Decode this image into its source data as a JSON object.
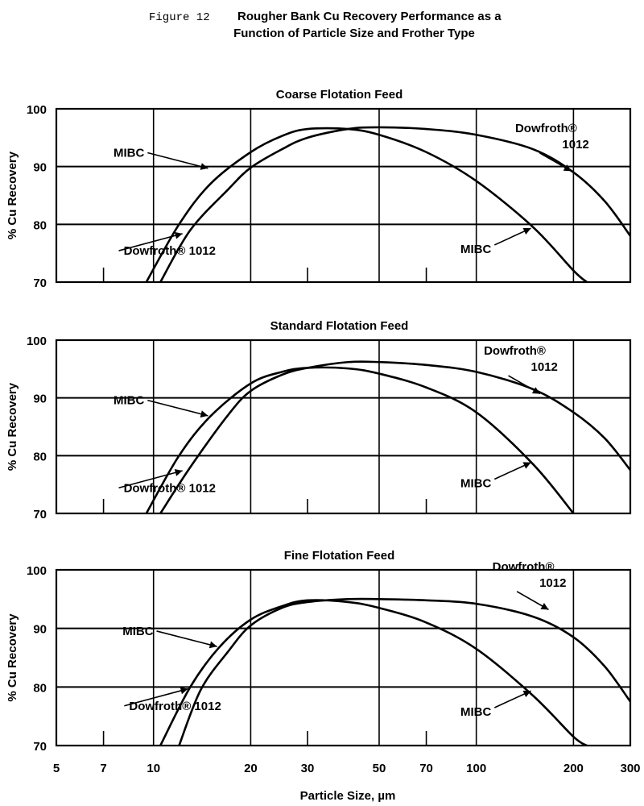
{
  "figure": {
    "label": "Figure 12",
    "title_line1": "Rougher Bank Cu Recovery Performance as a",
    "title_line2": "Function of Particle Size and Frother Type"
  },
  "x_axis": {
    "label": "Particle Size, µm",
    "scale": "log",
    "range": [
      5,
      300
    ],
    "ticks": [
      5,
      7,
      10,
      20,
      30,
      50,
      70,
      100,
      200,
      300
    ],
    "gridlines": [
      10,
      20,
      50,
      100,
      200
    ]
  },
  "chart_data": [
    {
      "type": "line",
      "title": "Coarse Flotation Feed",
      "ylabel": "% Cu Recovery",
      "ylim": [
        70,
        100
      ],
      "yticks": [
        70,
        80,
        90,
        100
      ],
      "grid": true,
      "series": [
        {
          "name": "MIBC",
          "x": [
            9.5,
            12,
            15,
            20,
            25,
            30,
            40,
            50,
            70,
            100,
            150,
            200,
            220
          ],
          "y": [
            70,
            80,
            87,
            92.5,
            95.3,
            96.5,
            96.5,
            95.5,
            92.5,
            87.5,
            79.5,
            72,
            70
          ]
        },
        {
          "name": "Dowfroth® 1012",
          "x": [
            10.5,
            13,
            17,
            20,
            25,
            30,
            40,
            50,
            70,
            100,
            150,
            200,
            250,
            300
          ],
          "y": [
            70,
            79,
            86,
            89.8,
            93,
            95,
            96.5,
            96.8,
            96.5,
            95.5,
            93,
            89,
            84,
            78
          ]
        }
      ],
      "annotations": [
        {
          "text": "MIBC",
          "target": "MIBC",
          "x": 15,
          "y": 89.6
        },
        {
          "text": "Dowfroth® 1012",
          "target": "Dowfroth® 1012",
          "x": 12.5,
          "y": 78.5
        },
        {
          "text": "MIBC",
          "target": "MIBC",
          "x": 150,
          "y": 79.5
        },
        {
          "text": "Dowfroth® 1012",
          "target": "Dowfroth® 1012",
          "x": 200,
          "y": 89
        }
      ]
    },
    {
      "type": "line",
      "title": "Standard Flotation Feed",
      "ylabel": "% Cu Recovery",
      "ylim": [
        70,
        100
      ],
      "yticks": [
        70,
        80,
        90,
        100
      ],
      "grid": true,
      "series": [
        {
          "name": "MIBC",
          "x": [
            9.5,
            12,
            15,
            20,
            25,
            30,
            40,
            50,
            70,
            100,
            150,
            200
          ],
          "y": [
            70,
            80,
            86.8,
            92.5,
            94.5,
            95.2,
            95.1,
            94.2,
            91.8,
            87.5,
            78.5,
            70
          ]
        },
        {
          "name": "Dowfroth® 1012",
          "x": [
            10.5,
            13,
            17,
            20,
            25,
            30,
            40,
            50,
            70,
            100,
            150,
            200,
            250,
            300
          ],
          "y": [
            70,
            78,
            87,
            91.2,
            94,
            95.2,
            96.2,
            96.2,
            95.7,
            94.5,
            91.5,
            87.5,
            83,
            77.5
          ]
        }
      ],
      "annotations": [
        {
          "text": "MIBC",
          "target": "MIBC",
          "x": 15,
          "y": 86.8
        },
        {
          "text": "Dowfroth® 1012",
          "target": "Dowfroth® 1012",
          "x": 12.5,
          "y": 77.5
        },
        {
          "text": "MIBC",
          "target": "MIBC",
          "x": 150,
          "y": 79
        },
        {
          "text": "Dowfroth® 1012",
          "target": "Dowfroth® 1012",
          "x": 160,
          "y": 90.5
        }
      ]
    },
    {
      "type": "line",
      "title": "Fine Flotation Feed",
      "ylabel": "% Cu Recovery",
      "ylim": [
        70,
        100
      ],
      "yticks": [
        70,
        80,
        90,
        100
      ],
      "grid": true,
      "series": [
        {
          "name": "MIBC",
          "x": [
            10.5,
            13,
            16,
            20,
            25,
            30,
            40,
            50,
            70,
            100,
            150,
            200,
            220
          ],
          "y": [
            70,
            80,
            86.8,
            91.5,
            93.8,
            94.8,
            94.5,
            93.5,
            91,
            86.5,
            78.5,
            71.5,
            70
          ]
        },
        {
          "name": "Dowfroth® 1012",
          "x": [
            12,
            14,
            17,
            20,
            25,
            30,
            40,
            50,
            70,
            100,
            150,
            200,
            250,
            300
          ],
          "y": [
            70,
            79.5,
            86,
            90.5,
            93.5,
            94.5,
            95,
            95,
            94.8,
            94.2,
            92,
            88.5,
            83.5,
            77.5
          ]
        }
      ],
      "annotations": [
        {
          "text": "MIBC",
          "target": "MIBC",
          "x": 16,
          "y": 86.8
        },
        {
          "text": "Dowfroth® 1012",
          "target": "Dowfroth® 1012",
          "x": 13,
          "y": 79.8
        },
        {
          "text": "MIBC",
          "target": "MIBC",
          "x": 150,
          "y": 79.5
        },
        {
          "text": "Dowfroth® 1012",
          "target": "Dowfroth® 1012",
          "x": 170,
          "y": 93
        }
      ]
    }
  ]
}
